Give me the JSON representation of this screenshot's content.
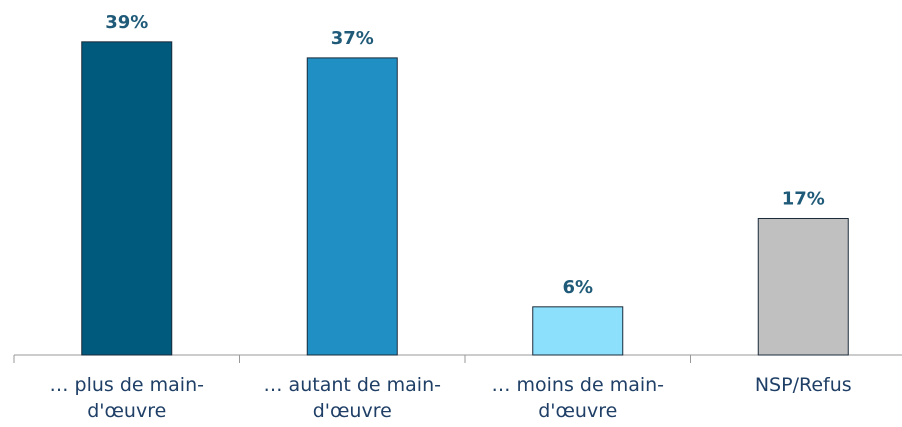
{
  "chart_data": {
    "type": "bar",
    "categories": [
      "… plus de main-d'œuvre",
      "… autant de main-d'œuvre",
      "… moins de main-d'œuvre",
      "NSP/Refus"
    ],
    "values": [
      39,
      37,
      6,
      17
    ],
    "value_labels": [
      "39%",
      "37%",
      "6%",
      "17%"
    ],
    "colors": [
      "#005a7d",
      "#1f8fc4",
      "#8de0fc",
      "#c0c0c0"
    ]
  }
}
